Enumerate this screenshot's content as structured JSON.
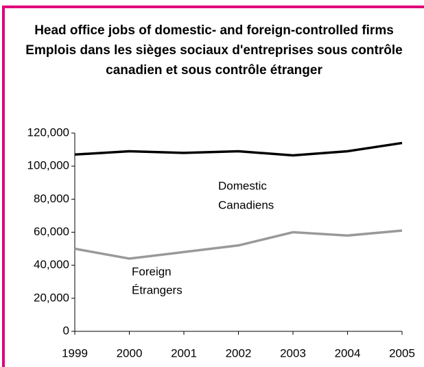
{
  "chart_data": {
    "type": "line",
    "title": "Head office jobs of domestic- and foreign-controlled firms",
    "subtitle": "Emplois dans les sièges sociaux d'entreprises sous contrôle canadien et sous contrôle étranger",
    "categories": [
      "1999",
      "2000",
      "2001",
      "2002",
      "2003",
      "2004",
      "2005"
    ],
    "series": [
      {
        "name": "Domestic",
        "color": "#000000",
        "values": [
          107000,
          109000,
          108000,
          109000,
          106500,
          109000,
          114000
        ]
      },
      {
        "name": "Foreign",
        "color": "#999999",
        "values": [
          50000,
          44000,
          48000,
          52000,
          60000,
          58000,
          61000
        ]
      }
    ],
    "annotations": [
      "Domestic",
      "Canadiens",
      "Foreign",
      "Étrangers"
    ],
    "ylim": [
      0,
      120000
    ],
    "yticks": [
      0,
      {
        "value": 20000,
        "label": "20,000"
      },
      {
        "value": 40000,
        "label": "40,000"
      },
      {
        "value": 60000,
        "label": "60,000"
      },
      {
        "value": 80000,
        "label": "80,000"
      },
      {
        "value": 100000,
        "label": "100,000"
      },
      {
        "value": 120000,
        "label": "120,000"
      }
    ],
    "grid": false
  }
}
